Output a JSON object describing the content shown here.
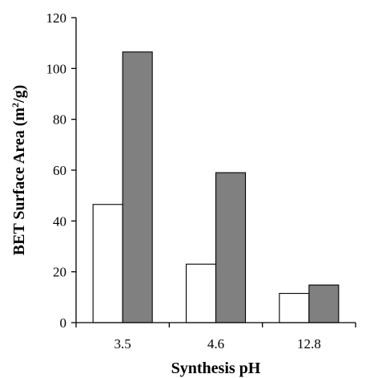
{
  "chart_data": {
    "type": "bar",
    "title": "",
    "xlabel": "Synthesis pH",
    "ylabel_main": "BET Surface Area  (m",
    "ylabel_sup": "2",
    "ylabel_end": "/g)",
    "categories": [
      "3.5",
      "4.6",
      "12.8"
    ],
    "series": [
      {
        "values": [
          46.5,
          23,
          11.5
        ],
        "color": "#ffffff"
      },
      {
        "values": [
          106.5,
          59,
          14.8
        ],
        "color": "#808080"
      }
    ],
    "ylim": [
      0,
      120
    ],
    "yticks": [
      0,
      20,
      40,
      60,
      80,
      100,
      120
    ],
    "grid": false,
    "legend": "none"
  }
}
